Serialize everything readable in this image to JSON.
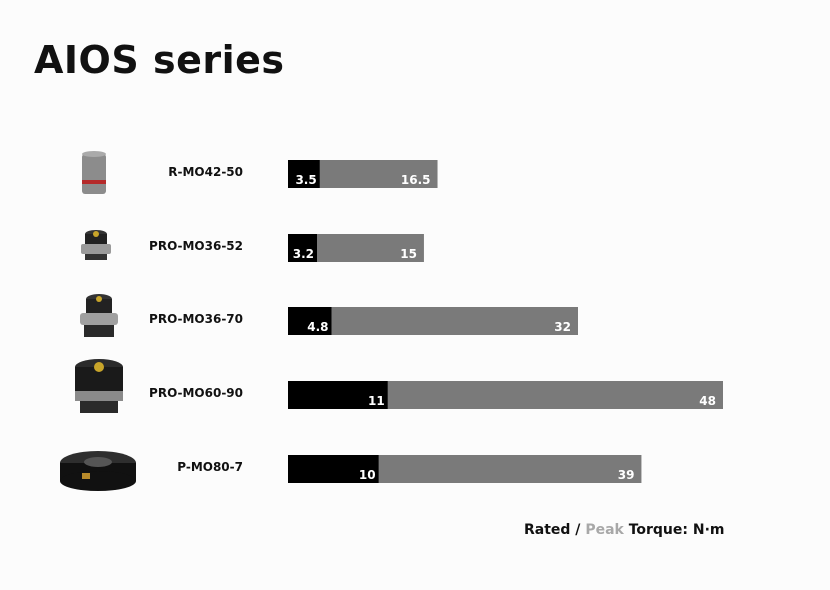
{
  "title": "AIOS series",
  "chart_data": {
    "type": "bar",
    "orientation": "horizontal",
    "stacked": "overlay",
    "categories": [
      "R-MO42-50",
      "PRO-MO36-52",
      "PRO-MO36-70",
      "PRO-MO60-90",
      "P-MO80-7"
    ],
    "series": [
      {
        "name": "Rated",
        "color": "#000000",
        "values": [
          3.5,
          3.2,
          4.8,
          11,
          10
        ]
      },
      {
        "name": "Peak",
        "color": "#7a7a7a",
        "values": [
          16.5,
          15,
          32,
          48,
          39
        ]
      }
    ],
    "xlim": [
      0,
      48
    ],
    "grid": false,
    "legend": {
      "position": "bottom-right",
      "rated": "Rated",
      "separator": " / ",
      "peak": "Peak",
      "suffix": " Torque: N·m",
      "peak_color": "#a8a8a8"
    }
  }
}
